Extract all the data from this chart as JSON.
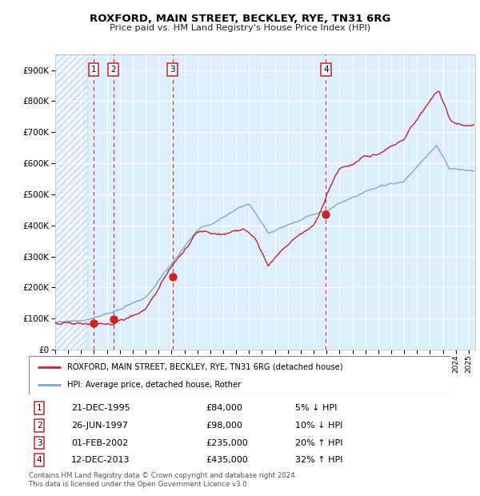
{
  "title": "ROXFORD, MAIN STREET, BECKLEY, RYE, TN31 6RG",
  "subtitle": "Price paid vs. HM Land Registry's House Price Index (HPI)",
  "legend_line1": "ROXFORD, MAIN STREET, BECKLEY, RYE, TN31 6RG (detached house)",
  "legend_line2": "HPI: Average price, detached house, Rother",
  "footer1": "Contains HM Land Registry data © Crown copyright and database right 2024.",
  "footer2": "This data is licensed under the Open Government Licence v3.0.",
  "transactions": [
    {
      "num": 1,
      "date": "21-DEC-1995",
      "price": 84000,
      "pct": "5%",
      "dir": "↓",
      "year": 1995.97
    },
    {
      "num": 2,
      "date": "26-JUN-1997",
      "price": 98000,
      "pct": "10%",
      "dir": "↓",
      "year": 1997.49
    },
    {
      "num": 3,
      "date": "01-FEB-2002",
      "price": 235000,
      "pct": "20%",
      "dir": "↑",
      "year": 2002.08
    },
    {
      "num": 4,
      "date": "12-DEC-2013",
      "price": 435000,
      "pct": "32%",
      "dir": "↑",
      "year": 2013.95
    }
  ],
  "hpi_color": "#7aaad0",
  "property_color": "#cc2222",
  "dashed_line_color": "#cc2222",
  "background_plot": "#ddeeff",
  "ylim": [
    0,
    950000
  ],
  "xlim_start": 1993.0,
  "xlim_end": 2025.5
}
